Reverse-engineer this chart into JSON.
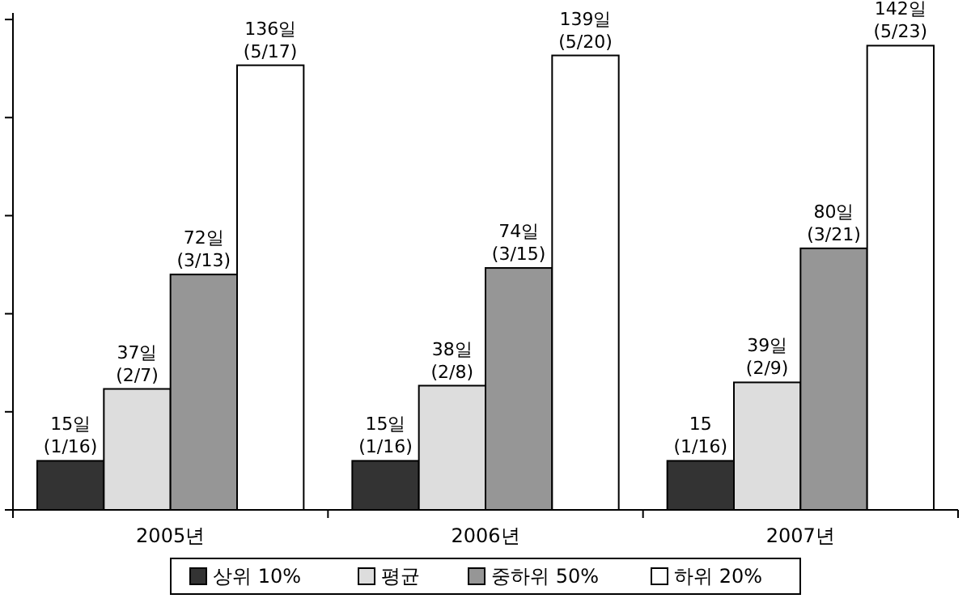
{
  "chart_data": {
    "type": "bar",
    "categories": [
      "2005년",
      "2006년",
      "2007년"
    ],
    "series": [
      {
        "name": "상위 10%",
        "color": "#333333",
        "values": [
          15,
          15,
          15
        ],
        "value_labels": [
          "15일\n(1/16)",
          "15일\n(1/16)",
          "15\n(1/16)"
        ]
      },
      {
        "name": "평균",
        "color": "#dddddd",
        "values": [
          37,
          38,
          39
        ],
        "value_labels": [
          "37일\n(2/7)",
          "38일\n(2/8)",
          "39일\n(2/9)"
        ]
      },
      {
        "name": "중하위 50%",
        "color": "#969696",
        "values": [
          72,
          74,
          80
        ],
        "value_labels": [
          "72일\n(3/13)",
          "74일\n(3/15)",
          "80일\n(3/21)"
        ]
      },
      {
        "name": "하위 20%",
        "color": "#ffffff",
        "values": [
          136,
          139,
          142
        ],
        "value_labels": [
          "136일\n(5/17)",
          "139일\n(5/20)",
          "142일\n(5/23)"
        ]
      }
    ],
    "ylim": [
      0,
      152
    ],
    "yticks": [
      {
        "value": 0,
        "label": null
      },
      {
        "value": 30,
        "label": null
      },
      {
        "value": 60,
        "label": null
      },
      {
        "value": 90,
        "label": null
      },
      {
        "value": 120,
        "label": null
      },
      {
        "value": 150,
        "label": null
      }
    ],
    "tick_labels": "x",
    "legend": "bottom",
    "grid": false
  }
}
